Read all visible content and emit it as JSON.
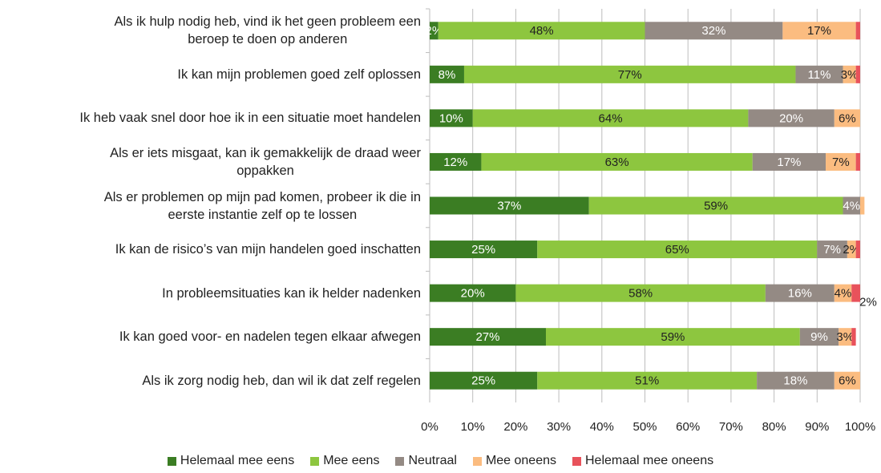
{
  "chart_data": {
    "type": "stacked-bar-horizontal",
    "categories": [
      "Als ik hulp nodig heb, vind ik het geen probleem een\nberoep te doen op anderen",
      "Ik kan mijn problemen goed zelf oplossen",
      "Ik heb vaak snel door hoe ik in een situatie moet handelen",
      "Als er iets misgaat, kan ik gemakkelijk de draad weer\noppakken",
      "Als er problemen op mijn pad komen, probeer ik die in\neerste instantie zelf op te lossen",
      "Ik kan de risico’s van mijn handelen goed inschatten",
      "In probleemsituaties kan ik helder nadenken",
      "Ik kan goed voor- en nadelen tegen elkaar afwegen",
      "Als ik zorg nodig heb, dan wil ik dat zelf regelen"
    ],
    "series": [
      {
        "name": "Helemaal mee eens",
        "color": "#3b7d23",
        "label_color": "#ffffff",
        "values": [
          2,
          8,
          10,
          12,
          37,
          25,
          20,
          27,
          25
        ],
        "value_labels": [
          "2%",
          "8%",
          "10%",
          "12%",
          "37%",
          "25%",
          "20%",
          "27%",
          "25%"
        ]
      },
      {
        "name": "Mee eens",
        "color": "#8dc63f",
        "label_color": "#222222",
        "values": [
          48,
          77,
          64,
          63,
          59,
          65,
          58,
          59,
          51
        ],
        "value_labels": [
          "48%",
          "77%",
          "64%",
          "63%",
          "59%",
          "65%",
          "58%",
          "59%",
          "51%"
        ]
      },
      {
        "name": "Neutraal",
        "color": "#948a84",
        "label_color": "#ffffff",
        "values": [
          32,
          11,
          20,
          17,
          4,
          7,
          16,
          9,
          18
        ],
        "value_labels": [
          "32%",
          "11%",
          "20%",
          "17%",
          "4%",
          "7%",
          "16%",
          "9%",
          "18%"
        ]
      },
      {
        "name": "Mee oneens",
        "color": "#fbbc80",
        "label_color": "#222222",
        "values": [
          17,
          3,
          6,
          7,
          1,
          2,
          4,
          3,
          6
        ],
        "value_labels": [
          "17%",
          "3%",
          "6%",
          "7%",
          null,
          "2%",
          "4%",
          "3%",
          "6%"
        ]
      },
      {
        "name": "Helemaal mee oneens",
        "color": "#e8525b",
        "label_color": "#222222",
        "values": [
          1,
          1,
          0,
          1,
          0,
          1,
          2,
          1,
          0
        ],
        "value_labels": [
          null,
          null,
          null,
          null,
          null,
          null,
          "2%",
          null,
          null
        ]
      }
    ],
    "xlim": [
      0,
      100
    ],
    "xticks": [
      {
        "value": 0,
        "label": "0%"
      },
      {
        "value": 10,
        "label": "10%"
      },
      {
        "value": 20,
        "label": "20%"
      },
      {
        "value": 30,
        "label": "30%"
      },
      {
        "value": 40,
        "label": "40%"
      },
      {
        "value": 50,
        "label": "50%"
      },
      {
        "value": 60,
        "label": "60%"
      },
      {
        "value": 70,
        "label": "70%"
      },
      {
        "value": 80,
        "label": "80%"
      },
      {
        "value": 90,
        "label": "90%"
      },
      {
        "value": 100,
        "label": "100%"
      }
    ],
    "grid": true,
    "legend": "bottom"
  }
}
